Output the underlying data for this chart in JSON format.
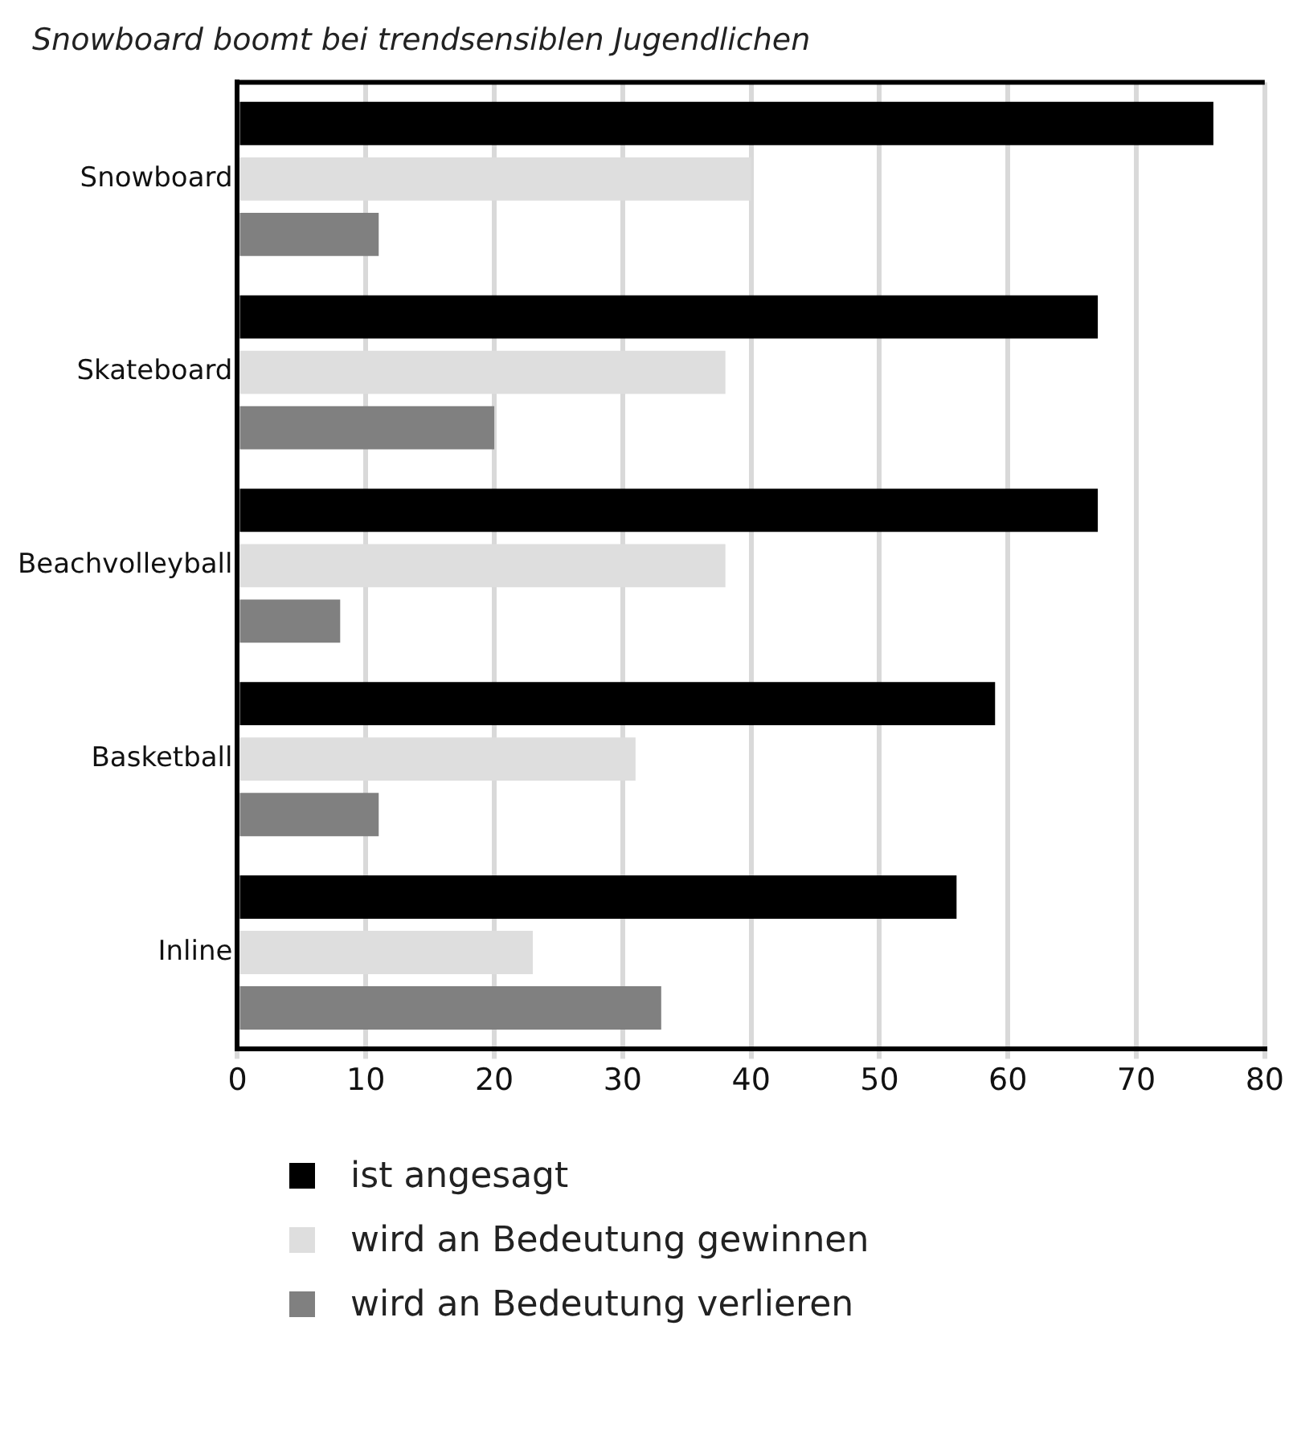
{
  "chart_data": {
    "type": "bar",
    "orientation": "horizontal",
    "title": "Snowboard boomt bei trendsensiblen Jugendlichen",
    "categories": [
      "Snowboard",
      "Skateboard",
      "Beachvolleyball",
      "Basketball",
      "Inline"
    ],
    "series": [
      {
        "name": "ist angesagt",
        "color": "#000000",
        "values": [
          76,
          67,
          67,
          59,
          56
        ]
      },
      {
        "name": "wird an Bedeutung gewinnen",
        "color": "#dedede",
        "values": [
          40,
          38,
          38,
          31,
          23
        ]
      },
      {
        "name": "wird an Bedeutung verlieren",
        "color": "#808080",
        "values": [
          11,
          20,
          8,
          11,
          33
        ]
      }
    ],
    "xlim": [
      0,
      80
    ],
    "xticks": [
      0,
      10,
      20,
      30,
      40,
      50,
      60,
      70,
      80
    ],
    "grid": "x",
    "legend": "bottom left"
  }
}
